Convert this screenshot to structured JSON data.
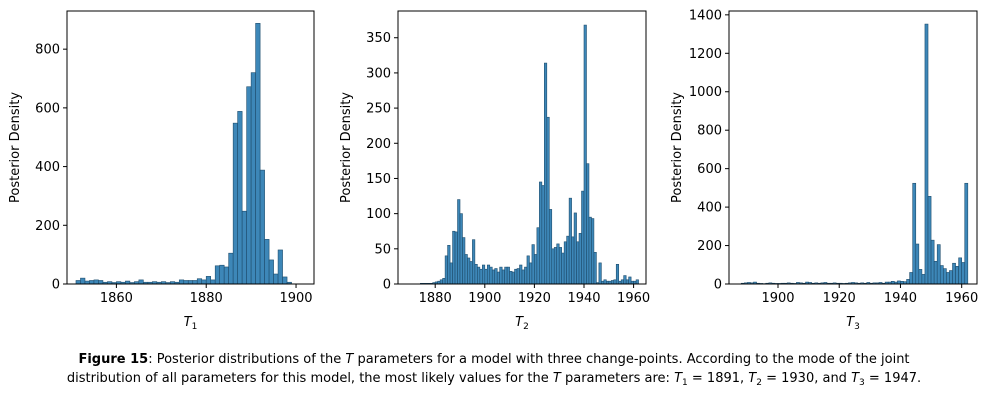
{
  "bar_color": "#3d87b8",
  "bar_edge": "#1f4e6e",
  "chart_data": [
    {
      "type": "bar",
      "title": "",
      "xlabel": "T",
      "xlabel_sub": "1",
      "ylabel": "Posterior Density",
      "xlim": [
        1849,
        1904
      ],
      "ylim": [
        0,
        930
      ],
      "xticks": [
        1860,
        1880,
        1900
      ],
      "yticks": [
        0,
        200,
        400,
        600,
        800
      ],
      "bin_width": 1,
      "x": [
        1851,
        1852,
        1853,
        1854,
        1855,
        1856,
        1857,
        1858,
        1859,
        1860,
        1861,
        1862,
        1863,
        1864,
        1865,
        1866,
        1867,
        1868,
        1869,
        1870,
        1871,
        1872,
        1873,
        1874,
        1875,
        1876,
        1877,
        1878,
        1879,
        1880,
        1881,
        1882,
        1883,
        1884,
        1885,
        1886,
        1887,
        1888,
        1889,
        1890,
        1891,
        1892,
        1893,
        1894,
        1895,
        1896,
        1897,
        1898
      ],
      "values": [
        12,
        20,
        10,
        12,
        14,
        12,
        6,
        8,
        5,
        8,
        6,
        10,
        5,
        8,
        14,
        6,
        6,
        8,
        6,
        8,
        5,
        8,
        6,
        14,
        12,
        12,
        12,
        18,
        14,
        26,
        14,
        62,
        64,
        58,
        105,
        548,
        588,
        248,
        672,
        720,
        888,
        388,
        152,
        82,
        34,
        116,
        24,
        6
      ]
    },
    {
      "type": "bar",
      "title": "",
      "xlabel": "T",
      "xlabel_sub": "2",
      "ylabel": "Posterior Density",
      "xlim": [
        1865,
        1965
      ],
      "ylim": [
        0,
        388
      ],
      "xticks": [
        1880,
        1900,
        1920,
        1940,
        1960
      ],
      "yticks": [
        0,
        50,
        100,
        150,
        200,
        250,
        300,
        350
      ],
      "bin_width": 1,
      "x": [
        1874,
        1875,
        1876,
        1877,
        1878,
        1879,
        1880,
        1881,
        1882,
        1883,
        1884,
        1885,
        1886,
        1887,
        1888,
        1889,
        1890,
        1891,
        1892,
        1893,
        1894,
        1895,
        1896,
        1897,
        1898,
        1899,
        1900,
        1901,
        1902,
        1903,
        1904,
        1905,
        1906,
        1907,
        1908,
        1909,
        1910,
        1911,
        1912,
        1913,
        1914,
        1915,
        1916,
        1917,
        1918,
        1919,
        1920,
        1921,
        1922,
        1923,
        1924,
        1925,
        1926,
        1927,
        1928,
        1929,
        1930,
        1931,
        1932,
        1933,
        1934,
        1935,
        1936,
        1937,
        1938,
        1939,
        1940,
        1941,
        1942,
        1943,
        1944,
        1945,
        1946,
        1947,
        1948,
        1949,
        1950,
        1951,
        1952,
        1953,
        1954,
        1955,
        1956,
        1957,
        1958,
        1959,
        1960,
        1961
      ],
      "values": [
        1,
        1,
        1,
        1,
        1,
        2,
        3,
        4,
        6,
        8,
        40,
        55,
        30,
        75,
        74,
        120,
        100,
        66,
        42,
        37,
        32,
        63,
        28,
        24,
        21,
        27,
        21,
        27,
        24,
        20,
        22,
        17,
        24,
        20,
        24,
        24,
        18,
        17,
        21,
        22,
        27,
        20,
        24,
        40,
        30,
        56,
        42,
        80,
        145,
        140,
        314,
        237,
        106,
        50,
        52,
        57,
        52,
        44,
        60,
        68,
        122,
        67,
        101,
        60,
        72,
        132,
        368,
        171,
        95,
        93,
        45,
        2,
        30,
        4,
        6,
        4,
        4,
        5,
        6,
        28,
        4,
        6,
        12,
        6,
        10,
        4,
        4,
        6
      ],
      "values_note": ""
    },
    {
      "type": "bar",
      "title": "",
      "xlabel": "T",
      "xlabel_sub": "3",
      "ylabel": "Posterior Density",
      "xlim": [
        1884,
        1965
      ],
      "ylim": [
        0,
        1420
      ],
      "xticks": [
        1900,
        1920,
        1940,
        1960
      ],
      "yticks": [
        0,
        200,
        400,
        600,
        800,
        1000,
        1200,
        1400
      ],
      "bin_width": 1,
      "x": [
        1888,
        1889,
        1890,
        1891,
        1892,
        1893,
        1894,
        1895,
        1896,
        1897,
        1898,
        1899,
        1900,
        1901,
        1902,
        1903,
        1904,
        1905,
        1906,
        1907,
        1908,
        1909,
        1910,
        1911,
        1912,
        1913,
        1914,
        1915,
        1916,
        1917,
        1918,
        1919,
        1920,
        1921,
        1922,
        1923,
        1924,
        1925,
        1926,
        1927,
        1928,
        1929,
        1930,
        1931,
        1932,
        1933,
        1934,
        1935,
        1936,
        1937,
        1938,
        1939,
        1940,
        1941,
        1942,
        1943,
        1944,
        1945,
        1946,
        1947,
        1948,
        1949,
        1950,
        1951,
        1952,
        1953,
        1954,
        1955,
        1956,
        1957,
        1958,
        1959,
        1960,
        1961
      ],
      "values": [
        4,
        6,
        8,
        6,
        10,
        4,
        3,
        2,
        4,
        6,
        4,
        3,
        3,
        4,
        4,
        6,
        4,
        3,
        8,
        6,
        4,
        10,
        8,
        4,
        6,
        4,
        6,
        8,
        4,
        4,
        6,
        4,
        4,
        3,
        4,
        6,
        8,
        6,
        4,
        6,
        4,
        8,
        4,
        6,
        6,
        8,
        4,
        10,
        10,
        14,
        10,
        16,
        14,
        12,
        24,
        60,
        524,
        208,
        76,
        50,
        1352,
        456,
        228,
        118,
        205,
        96,
        80,
        60,
        70,
        108,
        92,
        136,
        112,
        524
      ]
    }
  ],
  "caption": {
    "figure_label": "Figure 15",
    "line1_a": ": Posterior distributions of the ",
    "line1_T": "T",
    "line1_b": " parameters for a model with three change-points. According to the mode of the joint",
    "line2_a": "distribution of all parameters for this model, the most likely values for the ",
    "line2_T": "T",
    "line2_b": " parameters are: ",
    "t1_name": "T",
    "t1_sub": "1",
    "t1_val": " = 1891, ",
    "t2_name": "T",
    "t2_sub": "2",
    "t2_val": " = 1930, and ",
    "t3_name": "T",
    "t3_sub": "3",
    "t3_val": " = 1947."
  }
}
